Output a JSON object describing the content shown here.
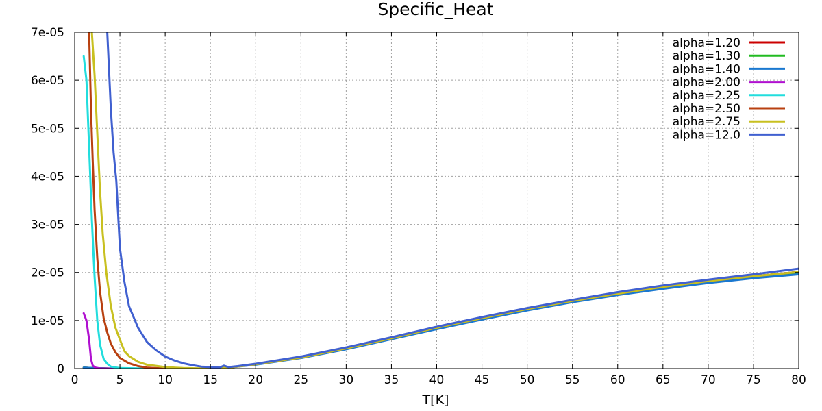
{
  "chart_data": {
    "type": "line",
    "title": "Specific_Heat",
    "xlabel": "T[K]",
    "ylabel": "",
    "xlim": [
      0,
      80
    ],
    "ylim": [
      0,
      7e-05
    ],
    "xticks": [
      0,
      5,
      10,
      15,
      20,
      25,
      30,
      35,
      40,
      45,
      50,
      55,
      60,
      65,
      70,
      75,
      80
    ],
    "xtick_labels": [
      "0",
      "5",
      "10",
      "15",
      "20",
      "25",
      "30",
      "35",
      "40",
      "45",
      "50",
      "55",
      "60",
      "65",
      "70",
      "75",
      "80"
    ],
    "yticks": [
      0,
      1e-05,
      2e-05,
      3e-05,
      4e-05,
      5e-05,
      6e-05,
      7e-05
    ],
    "ytick_labels": [
      "0",
      "1e-05",
      "2e-05",
      "3e-05",
      "4e-05",
      "5e-05",
      "6e-05",
      "7e-05"
    ],
    "grid": true,
    "legend_position": "top-right",
    "series": [
      {
        "name": "alpha=1.20",
        "color": "#cc0000",
        "x": [
          1,
          2,
          4,
          8,
          12,
          15,
          17,
          20,
          25,
          30,
          35,
          40,
          45,
          50,
          55,
          60,
          65,
          70,
          75,
          80
        ],
        "y": [
          2e-07,
          1e-07,
          0,
          0,
          0,
          0,
          2e-07,
          9e-07,
          2.3e-06,
          4.2e-06,
          6.3e-06,
          8.5e-06,
          1.05e-05,
          1.24e-05,
          1.41e-05,
          1.56e-05,
          1.7e-05,
          1.82e-05,
          1.92e-05,
          2.01e-05
        ]
      },
      {
        "name": "alpha=1.30",
        "color": "#22bb22",
        "x": [
          1,
          2,
          4,
          8,
          12,
          15,
          17,
          20,
          25,
          30,
          35,
          40,
          45,
          50,
          55,
          60,
          65,
          70,
          75,
          80
        ],
        "y": [
          2e-07,
          1e-07,
          0,
          0,
          0,
          0,
          2e-07,
          9e-07,
          2.3e-06,
          4.1e-06,
          6.2e-06,
          8.4e-06,
          1.04e-05,
          1.23e-05,
          1.4e-05,
          1.55e-05,
          1.68e-05,
          1.8e-05,
          1.9e-05,
          1.99e-05
        ]
      },
      {
        "name": "alpha=1.40",
        "color": "#1a78d0",
        "x": [
          1,
          2,
          4,
          8,
          12,
          15,
          17,
          20,
          25,
          30,
          35,
          40,
          45,
          50,
          55,
          60,
          65,
          70,
          75,
          80
        ],
        "y": [
          2e-07,
          1e-07,
          0,
          0,
          0,
          0,
          2e-07,
          8e-07,
          2.2e-06,
          4e-06,
          6.1e-06,
          8.2e-06,
          1.02e-05,
          1.21e-05,
          1.38e-05,
          1.53e-05,
          1.66e-05,
          1.78e-05,
          1.88e-05,
          1.96e-05
        ]
      },
      {
        "name": "alpha=2.00",
        "color": "#b010d0",
        "x": [
          1,
          1.3,
          1.6,
          1.8,
          2,
          2.3,
          2.6,
          3,
          4,
          6,
          10,
          15,
          17,
          20,
          25,
          30,
          35,
          40,
          45,
          50,
          55,
          60,
          65,
          70,
          75,
          80
        ],
        "y": [
          1.15e-05,
          1e-05,
          6e-06,
          2e-06,
          6e-07,
          2e-07,
          1e-07,
          0,
          0,
          0,
          0,
          0,
          2e-07,
          9e-07,
          2.3e-06,
          4.2e-06,
          6.3e-06,
          8.5e-06,
          1.05e-05,
          1.24e-05,
          1.41e-05,
          1.56e-05,
          1.7e-05,
          1.82e-05,
          1.92e-05,
          2.01e-05
        ]
      },
      {
        "name": "alpha=2.25",
        "color": "#22dddd",
        "x": [
          1,
          1.3,
          1.6,
          1.9,
          2.2,
          2.5,
          2.8,
          3.2,
          3.6,
          4,
          5,
          8,
          15,
          17,
          20,
          25,
          30,
          35,
          40,
          45,
          50,
          55,
          60,
          65,
          70,
          75,
          80
        ],
        "y": [
          6.5e-05,
          6e-05,
          4.6e-05,
          3.1e-05,
          1.9e-05,
          1e-05,
          5e-06,
          2e-06,
          1e-06,
          4e-07,
          1e-07,
          0,
          0,
          2e-07,
          9e-07,
          2.3e-06,
          4.2e-06,
          6.3e-06,
          8.5e-06,
          1.05e-05,
          1.24e-05,
          1.41e-05,
          1.56e-05,
          1.7e-05,
          1.82e-05,
          1.92e-05,
          2.01e-05
        ]
      },
      {
        "name": "alpha=2.50",
        "color": "#b84010",
        "x": [
          1.6,
          1.8,
          2.0,
          2.2,
          2.5,
          2.8,
          3.2,
          3.6,
          4,
          4.5,
          5,
          6,
          7,
          8,
          10,
          12,
          15,
          17,
          20,
          25,
          30,
          35,
          40,
          45,
          50,
          55,
          60,
          65,
          70,
          75,
          80
        ],
        "y": [
          7e-05,
          5.4e-05,
          4.3e-05,
          3.3e-05,
          2.3e-05,
          1.6e-05,
          1.05e-05,
          7.5e-06,
          5.2e-06,
          3.4e-06,
          2.2e-06,
          1.1e-06,
          5e-07,
          2e-07,
          0,
          0,
          0,
          2e-07,
          9e-07,
          2.3e-06,
          4.2e-06,
          6.3e-06,
          8.5e-06,
          1.05e-05,
          1.24e-05,
          1.41e-05,
          1.56e-05,
          1.7e-05,
          1.82e-05,
          1.92e-05,
          2.01e-05
        ]
      },
      {
        "name": "alpha=2.75",
        "color": "#c8c020",
        "x": [
          1.9,
          2.2,
          2.5,
          2.8,
          3.1,
          3.5,
          4,
          4.5,
          5,
          5.5,
          6,
          7,
          8,
          10,
          12,
          15,
          17,
          20,
          25,
          30,
          35,
          40,
          45,
          50,
          55,
          60,
          65,
          70,
          75,
          80
        ],
        "y": [
          7e-05,
          6.1e-05,
          4.9e-05,
          3.7e-05,
          2.8e-05,
          2e-05,
          1.3e-05,
          8.5e-06,
          6e-06,
          3.6e-06,
          2.6e-06,
          1.4e-06,
          8e-07,
          3e-07,
          1e-07,
          0,
          2e-07,
          9e-07,
          2.3e-06,
          4.2e-06,
          6.3e-06,
          8.5e-06,
          1.05e-05,
          1.24e-05,
          1.41e-05,
          1.56e-05,
          1.7e-05,
          1.82e-05,
          1.92e-05,
          2.01e-05
        ]
      },
      {
        "name": "alpha=12.0",
        "color": "#4060d0",
        "x": [
          3.6,
          3.8,
          4,
          4.3,
          4.6,
          5,
          5.5,
          6,
          7,
          8,
          9,
          10,
          11,
          12,
          13,
          14,
          15,
          16,
          16.5,
          17,
          18,
          20,
          25,
          30,
          35,
          40,
          45,
          50,
          55,
          60,
          65,
          70,
          75,
          80
        ],
        "y": [
          7e-05,
          6.2e-05,
          5.4e-05,
          4.5e-05,
          3.9e-05,
          2.5e-05,
          1.8e-05,
          1.3e-05,
          8.5e-06,
          5.5e-06,
          3.8e-06,
          2.5e-06,
          1.7e-06,
          1.1e-06,
          7e-07,
          4e-07,
          3e-07,
          2e-07,
          6e-07,
          3e-07,
          5e-07,
          1e-06,
          2.5e-06,
          4.4e-06,
          6.5e-06,
          8.7e-06,
          1.07e-05,
          1.26e-05,
          1.43e-05,
          1.59e-05,
          1.73e-05,
          1.85e-05,
          1.96e-05,
          2.08e-05
        ]
      }
    ]
  }
}
